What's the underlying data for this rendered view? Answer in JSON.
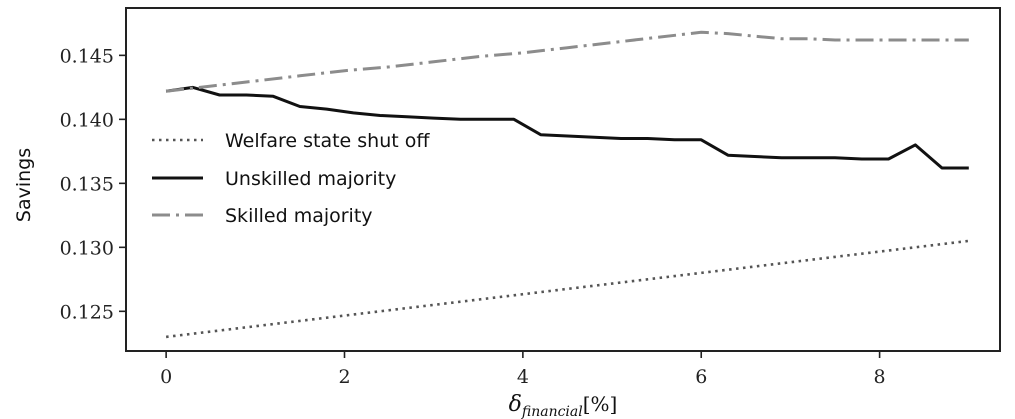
{
  "chart_data": {
    "type": "line",
    "xlabel": {
      "symbol": "δ",
      "subscript": "financial",
      "unit": "[%]"
    },
    "ylabel": "Savings",
    "xlim": [
      -0.45,
      9.35
    ],
    "ylim": [
      0.1219,
      0.1487
    ],
    "xticks": [
      0,
      2,
      4,
      6,
      8
    ],
    "xtick_labels": [
      "0",
      "2",
      "4",
      "6",
      "8"
    ],
    "yticks": [
      0.125,
      0.13,
      0.135,
      0.14,
      0.145
    ],
    "ytick_labels": [
      "0.125",
      "0.130",
      "0.135",
      "0.140",
      "0.145"
    ],
    "grid": false,
    "legend_position": "center-left",
    "series": [
      {
        "name": "Welfare state shut off",
        "style": "dotted",
        "color": "#555555",
        "x": [
          0,
          9
        ],
        "y": [
          0.123,
          0.1305
        ]
      },
      {
        "name": "Unskilled majority",
        "style": "solid",
        "color": "#111111",
        "x": [
          0,
          0.3,
          0.6,
          0.9,
          1.2,
          1.5,
          1.8,
          2.1,
          2.4,
          2.7,
          3.0,
          3.3,
          3.6,
          3.9,
          4.2,
          4.5,
          4.8,
          5.1,
          5.4,
          5.7,
          6.0,
          6.3,
          6.6,
          6.9,
          7.2,
          7.5,
          7.8,
          8.1,
          8.4,
          8.7,
          9.0
        ],
        "y": [
          0.1422,
          0.1425,
          0.1419,
          0.1419,
          0.1418,
          0.141,
          0.1408,
          0.1405,
          0.1403,
          0.1402,
          0.1401,
          0.14,
          0.14,
          0.14,
          0.1388,
          0.1387,
          0.1386,
          0.1385,
          0.1385,
          0.1384,
          0.1384,
          0.1372,
          0.1371,
          0.137,
          0.137,
          0.137,
          0.1369,
          0.1369,
          0.138,
          0.1362,
          0.1362
        ]
      },
      {
        "name": "Skilled majority",
        "style": "dashdot",
        "color": "#8c8c8c",
        "x": [
          0,
          0.5,
          1.0,
          1.5,
          2.0,
          2.5,
          3.0,
          3.5,
          4.0,
          4.5,
          5.0,
          5.5,
          6.0,
          6.3,
          6.6,
          6.9,
          7.2,
          7.5,
          7.8,
          8.1,
          8.4,
          8.7,
          9.0
        ],
        "y": [
          0.1422,
          0.1426,
          0.143,
          0.1434,
          0.1438,
          0.1441,
          0.1445,
          0.1449,
          0.1452,
          0.1456,
          0.146,
          0.1464,
          0.1468,
          0.1467,
          0.1465,
          0.1463,
          0.1463,
          0.1462,
          0.1462,
          0.1462,
          0.1462,
          0.1462,
          0.1462
        ]
      }
    ]
  }
}
